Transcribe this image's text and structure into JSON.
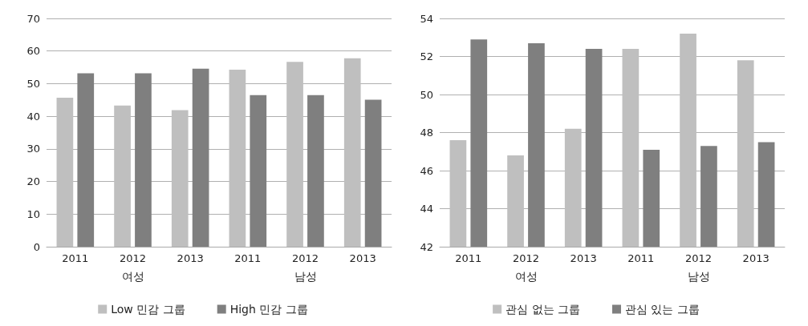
{
  "chart_data": [
    {
      "type": "bar",
      "categories": [
        "2011",
        "2012",
        "2013",
        "2011",
        "2012",
        "2013"
      ],
      "annotations": [
        "여성",
        "남성"
      ],
      "series": [
        {
          "name": "Low 민감 그룹",
          "color": "#bfbfbf",
          "values": [
            45.7,
            43.3,
            41.9,
            54.3,
            56.7,
            57.8
          ]
        },
        {
          "name": "High 민감 그룹",
          "color": "#7f7f7f",
          "values": [
            53.2,
            53.2,
            54.6,
            46.5,
            46.5,
            45.1
          ]
        }
      ],
      "ylim": [
        0,
        70
      ],
      "yticks": [
        0,
        10,
        20,
        30,
        40,
        50,
        60,
        70
      ],
      "grid": "y",
      "legend": "bottom"
    },
    {
      "type": "bar",
      "categories": [
        "2011",
        "2012",
        "2013",
        "2011",
        "2012",
        "2013"
      ],
      "annotations": [
        "여성",
        "남성"
      ],
      "series": [
        {
          "name": "관심 없는 그룹",
          "color": "#bfbfbf",
          "values": [
            47.6,
            46.8,
            48.2,
            52.4,
            53.2,
            51.8
          ]
        },
        {
          "name": "관심 있는 그룹",
          "color": "#7f7f7f",
          "values": [
            52.9,
            52.7,
            52.4,
            47.1,
            47.3,
            47.5
          ]
        }
      ],
      "ylim": [
        42,
        54
      ],
      "yticks": [
        42,
        44,
        46,
        48,
        50,
        52,
        54
      ],
      "grid": "y",
      "legend": "bottom"
    }
  ]
}
